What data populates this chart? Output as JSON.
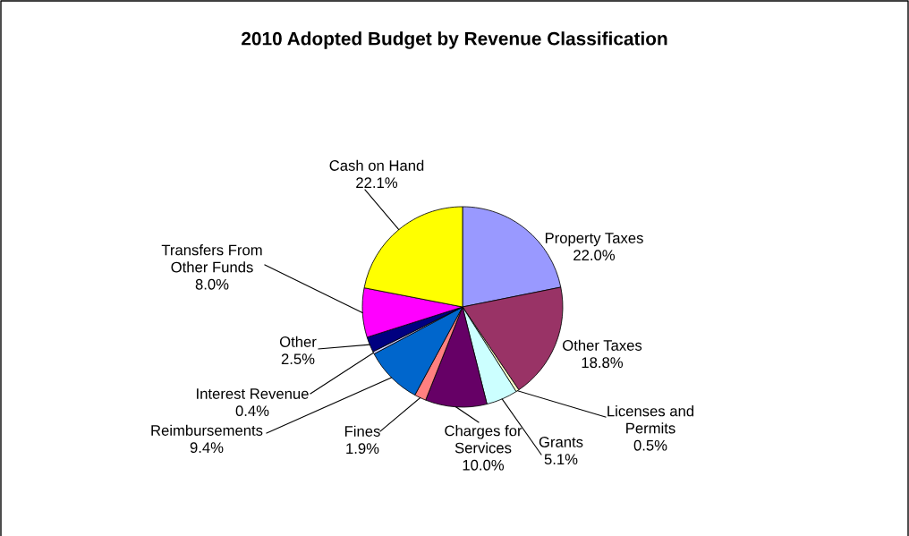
{
  "chart_data": {
    "type": "pie",
    "title": "2010 Adopted Budget by Revenue Classification",
    "categories": [
      "Property Taxes",
      "Other Taxes",
      "Licenses and\nPermits",
      "Grants",
      "Charges for\nServices",
      "Fines",
      "Reimbursements",
      "Interest Revenue",
      "Other",
      "Transfers From\nOther Funds",
      "Cash on Hand"
    ],
    "values": [
      22.0,
      18.8,
      0.5,
      5.1,
      10.0,
      1.9,
      9.4,
      0.4,
      2.5,
      8.0,
      22.1
    ],
    "value_labels": [
      "22.0%",
      "18.8%",
      "0.5%",
      "5.1%",
      "10.0%",
      "1.9%",
      "9.4%",
      "0.4%",
      "2.5%",
      "8.0%",
      "22.1%"
    ],
    "colors": [
      "#9999ff",
      "#993366",
      "#ffffcc",
      "#ccffff",
      "#660066",
      "#ff8080",
      "#0066cc",
      "#ccccff",
      "#000080",
      "#ff00ff",
      "#ffff00"
    ],
    "legend": false
  }
}
